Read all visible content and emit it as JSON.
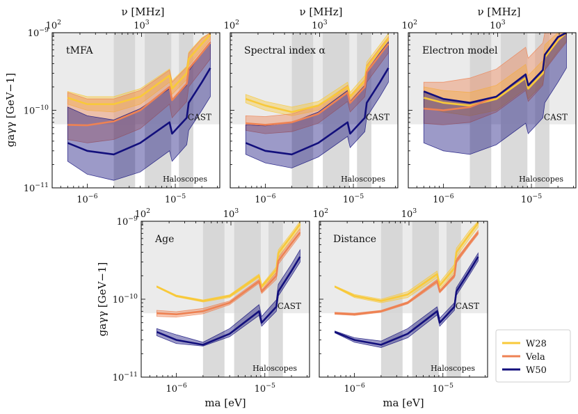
{
  "figure": {
    "top_axis_label": "ν [MHz]",
    "y_axis_label": "gaγγ [GeV−1]",
    "x_axis_label": "ma [eV]",
    "cast_label": "CAST",
    "haloscopes_label": "Haloscopes"
  },
  "legend": {
    "placement": "bottom-right",
    "entries": [
      {
        "name": "W28",
        "color": "#f8c93a"
      },
      {
        "name": "Vela",
        "color": "#ee8253"
      },
      {
        "name": "W50",
        "color": "#120f7c"
      }
    ]
  },
  "chart_data": [
    {
      "type": "line",
      "panel": "t_MFA",
      "title": "tMFA",
      "xscale": "log",
      "yscale": "log",
      "xlim": [
        4e-07,
        3.2e-05
      ],
      "ylim": [
        1e-11,
        1e-09
      ],
      "x_ticks": [
        "10−6",
        "10−5"
      ],
      "y_ticks": [
        "10−11",
        "10−10",
        "10−9"
      ],
      "top_ticks": [
        "102",
        "103"
      ],
      "cast_limit": 6.6e-11,
      "haloscope_bands_ev": [
        [
          2e-06,
          3.5e-06
        ],
        [
          4.5e-06,
          9e-06
        ],
        [
          1.1e-05,
          1.6e-05
        ]
      ],
      "series": [
        {
          "name": "W28",
          "color": "#f8c93a",
          "x": [
            6e-07,
            1e-06,
            2e-06,
            4e-06,
            8.6e-06,
            9.2e-06,
            1.35e-05,
            1.42e-05,
            2e-05,
            2.5e-05
          ],
          "y": [
            1.45e-10,
            1.2e-10,
            1.2e-10,
            1.5e-10,
            2.8e-10,
            1.9e-10,
            3e-10,
            4.6e-10,
            7.2e-10,
            9.5e-10
          ],
          "band_low": [
            1.2e-10,
            1e-10,
            9.5e-11,
            1.2e-10,
            2.3e-10,
            1.6e-10,
            2.5e-10,
            3.8e-10,
            6e-10,
            8.2e-10
          ],
          "band_high": [
            1.75e-10,
            1.5e-10,
            1.5e-10,
            1.9e-10,
            3.4e-10,
            2.4e-10,
            3.7e-10,
            5.6e-10,
            8.6e-10,
            1e-09
          ]
        },
        {
          "name": "Vela",
          "color": "#ee8253",
          "x": [
            6e-07,
            1e-06,
            2e-06,
            4e-06,
            8.6e-06,
            9.2e-06,
            1.35e-05,
            1.42e-05,
            2e-05,
            2.5e-05
          ],
          "y": [
            6.5e-11,
            6.4e-11,
            7.2e-11,
            1e-10,
            2e-10,
            1.35e-10,
            2.2e-10,
            3.4e-10,
            5.5e-10,
            7.5e-10
          ],
          "band_low": [
            4.2e-11,
            3.8e-11,
            4.2e-11,
            5.8e-11,
            1.2e-10,
            8e-11,
            1.3e-10,
            2e-10,
            3.3e-10,
            4.6e-10
          ],
          "band_high": [
            1.7e-10,
            1.4e-10,
            1.4e-10,
            1.8e-10,
            3.3e-10,
            2.3e-10,
            3.6e-10,
            5.4e-10,
            8.4e-10,
            1e-09
          ]
        },
        {
          "name": "W50",
          "color": "#120f7c",
          "x": [
            6e-07,
            1e-06,
            2e-06,
            4e-06,
            8.6e-06,
            9.2e-06,
            1.35e-05,
            1.42e-05,
            2e-05,
            2.5e-05
          ],
          "y": [
            3.8e-11,
            3e-11,
            2.7e-11,
            3.8e-11,
            7e-11,
            5e-11,
            8e-11,
            1.25e-10,
            2.3e-10,
            3.5e-10
          ],
          "band_low": [
            2.2e-11,
            1.5e-11,
            1.25e-11,
            1.6e-11,
            3e-11,
            2.2e-11,
            3.6e-11,
            5.5e-11,
            1e-10,
            1.5e-10
          ],
          "band_high": [
            1.1e-10,
            8.5e-11,
            7.5e-11,
            1.05e-10,
            1.9e-10,
            1.35e-10,
            2.1e-10,
            3.2e-10,
            5.5e-10,
            7.5e-10
          ]
        }
      ]
    },
    {
      "type": "line",
      "panel": "spectral_index",
      "title": "Spectral index α",
      "xscale": "log",
      "yscale": "log",
      "xlim": [
        4e-07,
        3.2e-05
      ],
      "ylim": [
        1e-11,
        1e-09
      ],
      "x_ticks": [
        "10−6",
        "10−5"
      ],
      "y_ticks": [
        "10−11",
        "10−10",
        "10−9"
      ],
      "top_ticks": [
        "102",
        "103"
      ],
      "cast_limit": 6.6e-11,
      "haloscope_bands_ev": [
        [
          2e-06,
          3.5e-06
        ],
        [
          4.5e-06,
          9e-06
        ],
        [
          1.1e-05,
          1.6e-05
        ]
      ],
      "series": [
        {
          "name": "W28",
          "color": "#f8c93a",
          "x": [
            6e-07,
            1e-06,
            2e-06,
            4e-06,
            8.6e-06,
            9.2e-06,
            1.35e-05,
            1.42e-05,
            2e-05,
            2.5e-05
          ],
          "y": [
            1.4e-10,
            1.15e-10,
            9.5e-11,
            1.15e-10,
            2e-10,
            1.5e-10,
            2.4e-10,
            3.6e-10,
            6e-10,
            8.5e-10
          ],
          "band_low": [
            1.25e-10,
            1e-10,
            8.5e-11,
            1e-10,
            1.8e-10,
            1.35e-10,
            2.1e-10,
            3.2e-10,
            5.3e-10,
            7.5e-10
          ],
          "band_high": [
            1.6e-10,
            1.3e-10,
            1.1e-10,
            1.3e-10,
            2.3e-10,
            1.7e-10,
            2.8e-10,
            4.2e-10,
            7e-10,
            9.8e-10
          ]
        },
        {
          "name": "Vela",
          "color": "#ee8253",
          "x": [
            6e-07,
            1e-06,
            2e-06,
            4e-06,
            8.6e-06,
            9.2e-06,
            1.35e-05,
            1.42e-05,
            2e-05,
            2.5e-05
          ],
          "y": [
            6.8e-11,
            6.5e-11,
            7e-11,
            9e-11,
            1.7e-10,
            1.25e-10,
            2e-10,
            3.1e-10,
            5.2e-10,
            7.2e-10
          ],
          "band_low": [
            5.5e-11,
            5e-11,
            5.3e-11,
            6.8e-11,
            1.3e-10,
            9.5e-11,
            1.5e-10,
            2.3e-10,
            3.9e-10,
            5.5e-10
          ],
          "band_high": [
            8.5e-11,
            8.3e-11,
            9e-11,
            1.15e-10,
            2.1e-10,
            1.55e-10,
            2.5e-10,
            3.8e-10,
            6.4e-10,
            8.8e-10
          ]
        },
        {
          "name": "W50",
          "color": "#120f7c",
          "x": [
            6e-07,
            1e-06,
            2e-06,
            4e-06,
            8.6e-06,
            9.2e-06,
            1.35e-05,
            1.42e-05,
            2e-05,
            2.5e-05
          ],
          "y": [
            3.8e-11,
            3e-11,
            2.7e-11,
            3.8e-11,
            7e-11,
            5e-11,
            8e-11,
            1.25e-10,
            2.3e-10,
            3.5e-10
          ],
          "band_low": [
            2.7e-11,
            2.1e-11,
            1.8e-11,
            2.5e-11,
            4.6e-11,
            3.3e-11,
            5.3e-11,
            8.2e-11,
            1.5e-10,
            2.3e-10
          ],
          "band_high": [
            6.5e-11,
            6.3e-11,
            7e-11,
            9.5e-11,
            1.8e-10,
            1.3e-10,
            2.1e-10,
            3.2e-10,
            5.5e-10,
            7.6e-10
          ]
        }
      ]
    },
    {
      "type": "line",
      "panel": "electron_model",
      "title": "Electron model",
      "xscale": "log",
      "yscale": "log",
      "xlim": [
        4e-07,
        3.2e-05
      ],
      "ylim": [
        1e-11,
        1e-09
      ],
      "x_ticks": [
        "10−6",
        "10−5"
      ],
      "y_ticks": [
        "10−11",
        "10−10",
        "10−9"
      ],
      "top_ticks": [
        "102",
        "103"
      ],
      "cast_limit": 6.6e-11,
      "haloscope_bands_ev": [
        [
          2e-06,
          3.5e-06
        ],
        [
          4.5e-06,
          9e-06
        ],
        [
          1.1e-05,
          1.6e-05
        ]
      ],
      "series": [
        {
          "name": "W28",
          "color": "#f8c93a",
          "x": [
            6e-07,
            1e-06,
            2e-06,
            4e-06,
            8.6e-06,
            9.2e-06,
            1.35e-05,
            1.42e-05,
            2e-05,
            2.5e-05
          ],
          "y": [
            1.45e-10,
            1.25e-10,
            1.15e-10,
            1.4e-10,
            2.6e-10,
            1.9e-10,
            3e-10,
            4.8e-10,
            8e-10,
            1e-09
          ],
          "band_low": [
            1.1e-10,
            9.5e-11,
            8.5e-11,
            1e-10,
            1.9e-10,
            1.4e-10,
            2.2e-10,
            3.4e-10,
            5.8e-10,
            7.8e-10
          ],
          "band_high": [
            2e-10,
            1.8e-10,
            1.7e-10,
            2.1e-10,
            3.9e-10,
            2.8e-10,
            4.4e-10,
            7e-10,
            1e-09,
            1e-09
          ]
        },
        {
          "name": "Vela",
          "color": "#ee8253",
          "x": [
            6e-07,
            1e-06,
            2e-06,
            4e-06,
            8.6e-06,
            9.2e-06,
            1.35e-05,
            1.42e-05,
            2e-05,
            2.5e-05
          ],
          "y": [
            1.05e-10,
            1e-10,
            1.1e-10,
            1.5e-10,
            2.9e-10,
            2.1e-10,
            3.3e-10,
            5.2e-10,
            8.6e-10,
            1e-09
          ],
          "band_low": [
            6.8e-11,
            6.5e-11,
            7e-11,
            9.5e-11,
            1.8e-10,
            1.3e-10,
            2.1e-10,
            3.3e-10,
            5.5e-10,
            7.5e-10
          ],
          "band_high": [
            2.3e-10,
            2.3e-10,
            2.6e-10,
            3.4e-10,
            6.5e-10,
            4.7e-10,
            7.4e-10,
            1e-09,
            1e-09,
            1e-09
          ]
        },
        {
          "name": "W50",
          "color": "#120f7c",
          "x": [
            6e-07,
            1e-06,
            2e-06,
            4e-06,
            8.6e-06,
            9.2e-06,
            1.35e-05,
            1.42e-05,
            2e-05,
            2.5e-05
          ],
          "y": [
            1.75e-10,
            1.4e-10,
            1.25e-10,
            1.5e-10,
            2.9e-10,
            2.1e-10,
            3.3e-10,
            5.2e-10,
            8.8e-10,
            1e-09
          ],
          "band_low": [
            3.8e-11,
            3e-11,
            2.7e-11,
            3.6e-11,
            6.8e-11,
            5e-11,
            8e-11,
            1.25e-10,
            2.3e-10,
            3.5e-10
          ],
          "band_high": [
            1.75e-10,
            1.4e-10,
            1.25e-10,
            1.5e-10,
            2.9e-10,
            2.1e-10,
            3.3e-10,
            5.2e-10,
            8.8e-10,
            1e-09
          ]
        }
      ]
    },
    {
      "type": "line",
      "panel": "age",
      "title": "Age",
      "xscale": "log",
      "yscale": "log",
      "xlim": [
        4e-07,
        3.2e-05
      ],
      "ylim": [
        1e-11,
        1e-09
      ],
      "x_ticks": [
        "10−6",
        "10−5"
      ],
      "y_ticks": [
        "10−11",
        "10−10",
        "10−9"
      ],
      "top_ticks": [
        "102",
        "103"
      ],
      "cast_limit": 6.6e-11,
      "haloscope_bands_ev": [
        [
          2e-06,
          3.5e-06
        ],
        [
          4.5e-06,
          9e-06
        ],
        [
          1.1e-05,
          1.6e-05
        ]
      ],
      "series": [
        {
          "name": "W28",
          "color": "#f8c93a",
          "x": [
            6e-07,
            1e-06,
            2e-06,
            4e-06,
            8.6e-06,
            9.2e-06,
            1.35e-05,
            1.42e-05,
            2e-05,
            2.5e-05
          ],
          "y": [
            1.45e-10,
            1.1e-10,
            9.5e-11,
            1.1e-10,
            2e-10,
            1.45e-10,
            2.4e-10,
            3.9e-10,
            6.5e-10,
            9.2e-10
          ],
          "band_low": [
            1.42e-10,
            1.07e-10,
            9.2e-11,
            1.05e-10,
            1.9e-10,
            1.38e-10,
            2.2e-10,
            3.5e-10,
            5.9e-10,
            8.2e-10
          ],
          "band_high": [
            1.48e-10,
            1.13e-10,
            9.8e-11,
            1.14e-10,
            2.1e-10,
            1.52e-10,
            2.6e-10,
            4.3e-10,
            7.1e-10,
            1e-09
          ]
        },
        {
          "name": "Vela",
          "color": "#ee8253",
          "x": [
            6e-07,
            1e-06,
            2e-06,
            4e-06,
            8.6e-06,
            9.2e-06,
            1.35e-05,
            1.42e-05,
            2e-05,
            2.5e-05
          ],
          "y": [
            6.6e-11,
            6.4e-11,
            7e-11,
            9e-11,
            1.7e-10,
            1.25e-10,
            2e-10,
            3.1e-10,
            5.2e-10,
            7.2e-10
          ],
          "band_low": [
            6e-11,
            5.9e-11,
            6.5e-11,
            8.5e-11,
            1.6e-10,
            1.18e-10,
            1.8e-10,
            2.8e-10,
            4.7e-10,
            6.6e-10
          ],
          "band_high": [
            7.2e-11,
            6.9e-11,
            7.6e-11,
            9.5e-11,
            1.8e-10,
            1.32e-10,
            2.2e-10,
            3.4e-10,
            5.7e-10,
            8e-10
          ]
        },
        {
          "name": "W50",
          "color": "#120f7c",
          "x": [
            6e-07,
            1e-06,
            2e-06,
            4e-06,
            8.6e-06,
            9.2e-06,
            1.35e-05,
            1.42e-05,
            2e-05,
            2.5e-05
          ],
          "y": [
            3.8e-11,
            3e-11,
            2.6e-11,
            3.6e-11,
            7e-11,
            5e-11,
            8e-11,
            1.25e-10,
            2.3e-10,
            3.5e-10
          ],
          "band_low": [
            3.4e-11,
            2.7e-11,
            2.5e-11,
            3.3e-11,
            6.2e-11,
            4.5e-11,
            7e-11,
            1.1e-10,
            2e-10,
            3e-10
          ],
          "band_high": [
            4.2e-11,
            3.5e-11,
            2.8e-11,
            4.2e-11,
            8.5e-11,
            6e-11,
            9.8e-11,
            1.55e-10,
            2.8e-10,
            4.3e-10
          ]
        }
      ]
    },
    {
      "type": "line",
      "panel": "distance",
      "title": "Distance",
      "xscale": "log",
      "yscale": "log",
      "xlim": [
        4e-07,
        3.2e-05
      ],
      "ylim": [
        1e-11,
        1e-09
      ],
      "x_ticks": [
        "10−6",
        "10−5"
      ],
      "y_ticks": [
        "10−11",
        "10−10",
        "10−9"
      ],
      "top_ticks": [
        "102",
        "103"
      ],
      "cast_limit": 6.6e-11,
      "haloscope_bands_ev": [
        [
          2e-06,
          3.5e-06
        ],
        [
          4.5e-06,
          9e-06
        ],
        [
          1.1e-05,
          1.6e-05
        ]
      ],
      "series": [
        {
          "name": "W28",
          "color": "#f8c93a",
          "x": [
            6e-07,
            1e-06,
            2e-06,
            4e-06,
            8.6e-06,
            9.2e-06,
            1.35e-05,
            1.42e-05,
            2e-05,
            2.5e-05
          ],
          "y": [
            1.45e-10,
            1.1e-10,
            9.5e-11,
            1.15e-10,
            2.1e-10,
            1.5e-10,
            2.5e-10,
            4e-10,
            6.8e-10,
            9.5e-10
          ],
          "band_low": [
            1.42e-10,
            1.05e-10,
            9e-11,
            1.05e-10,
            1.9e-10,
            1.35e-10,
            2.2e-10,
            3.5e-10,
            6e-10,
            8.4e-10
          ],
          "band_high": [
            1.48e-10,
            1.15e-10,
            1e-10,
            1.25e-10,
            2.3e-10,
            1.65e-10,
            2.8e-10,
            4.5e-10,
            7.6e-10,
            1e-09
          ]
        },
        {
          "name": "Vela",
          "color": "#ee8253",
          "x": [
            6e-07,
            1e-06,
            2e-06,
            4e-06,
            8.6e-06,
            9.2e-06,
            1.35e-05,
            1.42e-05,
            2e-05,
            2.5e-05
          ],
          "y": [
            6.6e-11,
            6.4e-11,
            7e-11,
            9e-11,
            1.7e-10,
            1.25e-10,
            2e-10,
            3.1e-10,
            5.2e-10,
            7.2e-10
          ],
          "band_low": [
            6.4e-11,
            6.2e-11,
            6.8e-11,
            8.7e-11,
            1.6e-10,
            1.2e-10,
            1.9e-10,
            2.9e-10,
            4.9e-10,
            6.8e-10
          ],
          "band_high": [
            6.8e-11,
            6.6e-11,
            7.2e-11,
            9.3e-11,
            1.8e-10,
            1.3e-10,
            2.1e-10,
            3.3e-10,
            5.5e-10,
            7.6e-10
          ]
        },
        {
          "name": "W50",
          "color": "#120f7c",
          "x": [
            6e-07,
            1e-06,
            2e-06,
            4e-06,
            8.6e-06,
            9.2e-06,
            1.35e-05,
            1.42e-05,
            2e-05,
            2.5e-05
          ],
          "y": [
            3.8e-11,
            3e-11,
            2.6e-11,
            3.6e-11,
            7e-11,
            5e-11,
            8e-11,
            1.25e-10,
            2.3e-10,
            3.5e-10
          ],
          "band_low": [
            3.7e-11,
            2.8e-11,
            2.4e-11,
            3.2e-11,
            6.3e-11,
            4.5e-11,
            7.2e-11,
            1.12e-10,
            2.05e-10,
            3.1e-10
          ],
          "band_high": [
            3.9e-11,
            3.2e-11,
            2.9e-11,
            4.2e-11,
            8e-11,
            5.7e-11,
            9e-11,
            1.4e-10,
            2.6e-10,
            3.9e-10
          ]
        }
      ]
    }
  ]
}
